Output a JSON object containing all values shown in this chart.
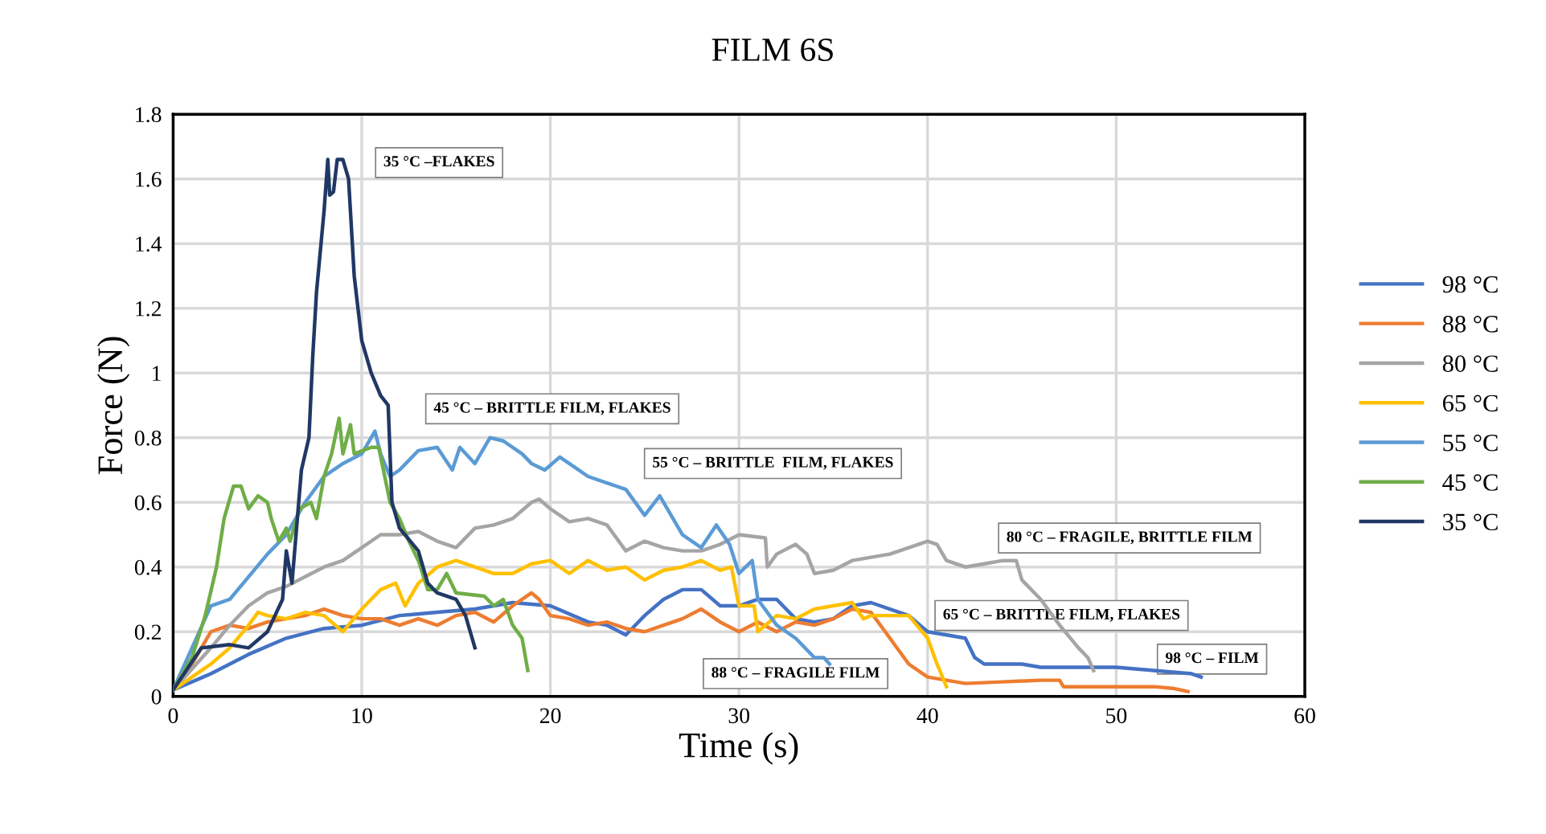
{
  "chart_data": {
    "type": "line",
    "title": "FILM 6S",
    "xlabel": "Time (s)",
    "ylabel": "Force (N)",
    "xlim": [
      0,
      60
    ],
    "xticks": [
      0,
      10,
      20,
      30,
      40,
      50,
      60
    ],
    "ylim": [
      0,
      1.8
    ],
    "yticks": [
      0,
      0.2,
      0.4,
      0.6,
      0.8,
      1,
      1.2,
      1.4,
      1.6,
      1.8
    ],
    "grid": true,
    "legend": "right",
    "line_style": "solid",
    "marker": "none",
    "series": [
      {
        "name": "98 °C",
        "color": "#4472c4",
        "x": [
          0,
          2,
          4,
          6,
          8,
          10,
          12,
          14,
          16,
          18,
          20,
          22,
          23,
          24,
          25,
          26,
          27,
          28,
          29,
          30,
          31,
          32,
          33,
          34,
          35,
          36,
          37,
          38,
          39,
          40,
          41,
          42,
          42.5,
          43,
          45,
          46,
          48,
          50,
          52,
          54,
          54.5
        ],
        "values": [
          0.02,
          0.07,
          0.13,
          0.18,
          0.21,
          0.22,
          0.25,
          0.26,
          0.27,
          0.29,
          0.28,
          0.23,
          0.22,
          0.19,
          0.25,
          0.3,
          0.33,
          0.33,
          0.28,
          0.28,
          0.3,
          0.3,
          0.24,
          0.23,
          0.24,
          0.28,
          0.29,
          0.27,
          0.25,
          0.2,
          0.19,
          0.18,
          0.12,
          0.1,
          0.1,
          0.09,
          0.09,
          0.09,
          0.08,
          0.07,
          0.06
        ]
      },
      {
        "name": "88 °C",
        "color": "#ed7d31",
        "x": [
          0,
          1,
          2,
          3,
          4,
          5,
          6,
          7,
          8,
          9,
          10,
          11,
          12,
          13,
          14,
          15,
          16,
          17,
          18,
          19,
          19.4,
          20,
          21,
          22,
          23,
          24,
          25,
          26,
          27,
          28,
          29,
          30,
          31,
          32,
          33,
          34,
          35,
          36,
          37,
          38,
          39,
          40,
          42,
          44,
          46,
          47,
          47.2,
          50,
          52,
          53,
          53.8
        ],
        "values": [
          0.02,
          0.1,
          0.2,
          0.22,
          0.21,
          0.23,
          0.24,
          0.25,
          0.27,
          0.25,
          0.24,
          0.24,
          0.22,
          0.24,
          0.22,
          0.25,
          0.26,
          0.23,
          0.28,
          0.32,
          0.3,
          0.25,
          0.24,
          0.22,
          0.23,
          0.21,
          0.2,
          0.22,
          0.24,
          0.27,
          0.23,
          0.2,
          0.23,
          0.2,
          0.23,
          0.22,
          0.24,
          0.27,
          0.26,
          0.18,
          0.1,
          0.06,
          0.04,
          0.045,
          0.05,
          0.05,
          0.03,
          0.03,
          0.03,
          0.025,
          0.015
        ]
      },
      {
        "name": "80 °C",
        "color": "#a5a5a5",
        "x": [
          0,
          2,
          3,
          4,
          5,
          6,
          7,
          8,
          9,
          10,
          11,
          12,
          13,
          14,
          15,
          16,
          17,
          18,
          19,
          19.4,
          20,
          21,
          22,
          23,
          24,
          25,
          26,
          27,
          28,
          29,
          30,
          31.4,
          31.5,
          32,
          33,
          33.6,
          34,
          35,
          36,
          37,
          38,
          39,
          40,
          40.5,
          41,
          42,
          43,
          44,
          44.7,
          45,
          46,
          47,
          48,
          48.5,
          48.8
        ],
        "values": [
          0.02,
          0.15,
          0.22,
          0.28,
          0.32,
          0.34,
          0.37,
          0.4,
          0.42,
          0.46,
          0.5,
          0.5,
          0.51,
          0.48,
          0.46,
          0.52,
          0.53,
          0.55,
          0.6,
          0.61,
          0.58,
          0.54,
          0.55,
          0.53,
          0.45,
          0.48,
          0.46,
          0.45,
          0.45,
          0.47,
          0.5,
          0.49,
          0.4,
          0.44,
          0.47,
          0.44,
          0.38,
          0.39,
          0.42,
          0.43,
          0.44,
          0.46,
          0.48,
          0.47,
          0.42,
          0.4,
          0.41,
          0.42,
          0.42,
          0.36,
          0.3,
          0.22,
          0.15,
          0.12,
          0.08
        ]
      },
      {
        "name": "65 °C",
        "color": "#ffc000",
        "x": [
          0,
          2,
          3,
          4,
          4.5,
          5,
          6,
          7,
          8,
          9,
          10,
          11,
          11.8,
          12.3,
          13,
          14,
          15,
          16,
          17,
          18,
          19,
          20,
          21,
          22,
          23,
          24,
          25,
          26,
          27,
          28,
          29,
          29.6,
          30,
          30.8,
          31,
          32,
          33,
          34,
          35,
          36,
          36.6,
          37,
          38,
          39,
          40,
          40.5,
          41
        ],
        "values": [
          0.02,
          0.1,
          0.15,
          0.22,
          0.26,
          0.25,
          0.24,
          0.26,
          0.25,
          0.2,
          0.27,
          0.33,
          0.35,
          0.28,
          0.35,
          0.4,
          0.42,
          0.4,
          0.38,
          0.38,
          0.41,
          0.42,
          0.38,
          0.42,
          0.39,
          0.4,
          0.36,
          0.39,
          0.4,
          0.42,
          0.39,
          0.4,
          0.28,
          0.28,
          0.2,
          0.25,
          0.24,
          0.27,
          0.28,
          0.29,
          0.24,
          0.25,
          0.25,
          0.25,
          0.18,
          0.1,
          0.03
        ]
      },
      {
        "name": "55 °C",
        "color": "#5b9bd5",
        "x": [
          0,
          1,
          2,
          3,
          4,
          5,
          6,
          7,
          8,
          9,
          10,
          10.7,
          11,
          11.5,
          12,
          13,
          14,
          14.8,
          15.2,
          16,
          16.8,
          17.5,
          18.5,
          19,
          19.7,
          20.5,
          21,
          22,
          23,
          24,
          25,
          25.8,
          26.5,
          27,
          28,
          28.8,
          29.5,
          30,
          30.7,
          31,
          32,
          33,
          34,
          34.5,
          34.8
        ],
        "values": [
          0.02,
          0.15,
          0.28,
          0.3,
          0.37,
          0.44,
          0.5,
          0.6,
          0.68,
          0.72,
          0.75,
          0.82,
          0.75,
          0.68,
          0.7,
          0.76,
          0.77,
          0.7,
          0.77,
          0.72,
          0.8,
          0.79,
          0.75,
          0.72,
          0.7,
          0.74,
          0.72,
          0.68,
          0.66,
          0.64,
          0.56,
          0.62,
          0.55,
          0.5,
          0.46,
          0.53,
          0.47,
          0.38,
          0.42,
          0.3,
          0.22,
          0.18,
          0.12,
          0.12,
          0.1
        ]
      },
      {
        "name": "45 °C",
        "color": "#70ad47",
        "x": [
          0,
          1,
          1.7,
          2.3,
          2.7,
          3.2,
          3.6,
          4,
          4.5,
          5,
          5.2,
          5.6,
          6,
          6.2,
          6.7,
          7.3,
          7.6,
          8,
          8.4,
          8.8,
          9,
          9.4,
          9.6,
          10.5,
          10.9,
          11.5,
          12,
          12.5,
          13,
          13.5,
          14,
          14.5,
          15,
          16.5,
          17,
          17.5,
          18,
          18.5,
          18.8
        ],
        "values": [
          0.02,
          0.12,
          0.25,
          0.4,
          0.55,
          0.65,
          0.65,
          0.58,
          0.62,
          0.6,
          0.55,
          0.48,
          0.52,
          0.48,
          0.58,
          0.6,
          0.55,
          0.68,
          0.75,
          0.86,
          0.75,
          0.84,
          0.75,
          0.77,
          0.77,
          0.6,
          0.55,
          0.48,
          0.42,
          0.33,
          0.33,
          0.38,
          0.32,
          0.31,
          0.28,
          0.3,
          0.22,
          0.18,
          0.08
        ]
      },
      {
        "name": "35 °C",
        "color": "#203864",
        "x": [
          0,
          1.5,
          3,
          4,
          5,
          5.8,
          6,
          6.3,
          6.8,
          7.2,
          7.4,
          7.6,
          8,
          8.2,
          8.3,
          8.5,
          8.7,
          9,
          9.3,
          9.6,
          10,
          10.5,
          11,
          11.4,
          11.6,
          12,
          13,
          13.5,
          14,
          15,
          15.5,
          16
        ],
        "values": [
          0.02,
          0.15,
          0.16,
          0.15,
          0.2,
          0.3,
          0.45,
          0.35,
          0.7,
          0.8,
          1.05,
          1.25,
          1.5,
          1.66,
          1.55,
          1.56,
          1.66,
          1.66,
          1.6,
          1.3,
          1.1,
          1.0,
          0.93,
          0.9,
          0.6,
          0.52,
          0.45,
          0.35,
          0.32,
          0.3,
          0.25,
          0.15
        ]
      }
    ],
    "annotations": [
      "35 °C –FLAKES",
      "45 °C – BRITTLE FILM, FLAKES",
      "55 °C – BRITTLE  FILM, FLAKES",
      "80 °C – FRAGILE, BRITTLE FILM",
      "65 °C – BRITTLE FILM, FLAKES",
      "88 °C – FRAGILE FILM",
      "98 °C – FILM"
    ]
  }
}
